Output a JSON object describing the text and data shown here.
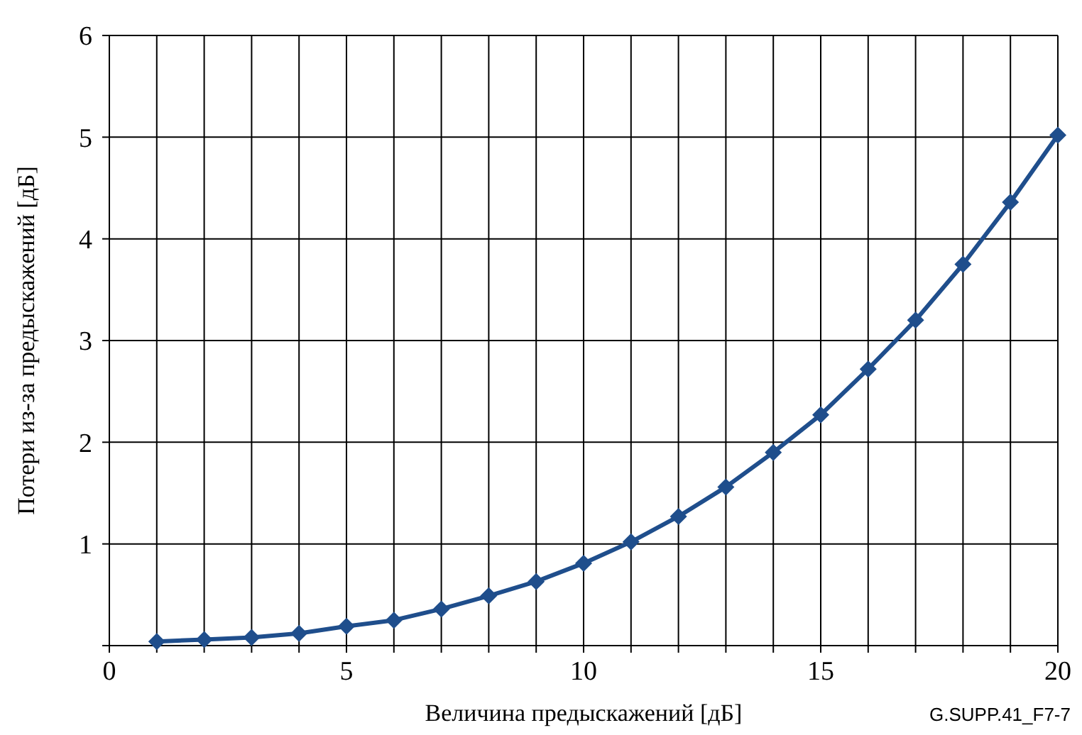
{
  "chart_data": {
    "type": "line",
    "xlabel": "Величина предыскажений [дБ]",
    "ylabel": "Потери из-за предыскажений [дБ]",
    "annotations": [
      "G.SUPP.41_F7-7"
    ],
    "x": [
      1,
      2,
      3,
      4,
      5,
      6,
      7,
      8,
      9,
      10,
      11,
      12,
      13,
      14,
      15,
      16,
      17,
      18,
      19,
      20
    ],
    "series": [
      {
        "color": "#1f4e8c",
        "values": [
          0.04,
          0.06,
          0.08,
          0.12,
          0.19,
          0.25,
          0.36,
          0.49,
          0.63,
          0.81,
          1.02,
          1.27,
          1.56,
          1.9,
          2.27,
          2.72,
          3.2,
          3.75,
          4.36,
          5.02
        ]
      }
    ],
    "xlim": [
      0,
      20
    ],
    "ylim": [
      0,
      6
    ],
    "xticks": [
      0,
      {
        "value": 1,
        "label": null
      },
      {
        "value": 2,
        "label": null
      },
      {
        "value": 3,
        "label": null
      },
      {
        "value": 4,
        "label": null
      },
      5,
      {
        "value": 6,
        "label": null
      },
      {
        "value": 7,
        "label": null
      },
      {
        "value": 8,
        "label": null
      },
      {
        "value": 9,
        "label": null
      },
      10,
      {
        "value": 11,
        "label": null
      },
      {
        "value": 12,
        "label": null
      },
      {
        "value": 13,
        "label": null
      },
      {
        "value": 14,
        "label": null
      },
      15,
      {
        "value": 16,
        "label": null
      },
      {
        "value": 17,
        "label": null
      },
      {
        "value": 18,
        "label": null
      },
      {
        "value": 19,
        "label": null
      },
      20
    ],
    "yticks": [
      {
        "value": 0,
        "label": null
      },
      1,
      2,
      3,
      4,
      5,
      6
    ],
    "grid": true,
    "marker": "diamond",
    "line_style": "solid"
  }
}
